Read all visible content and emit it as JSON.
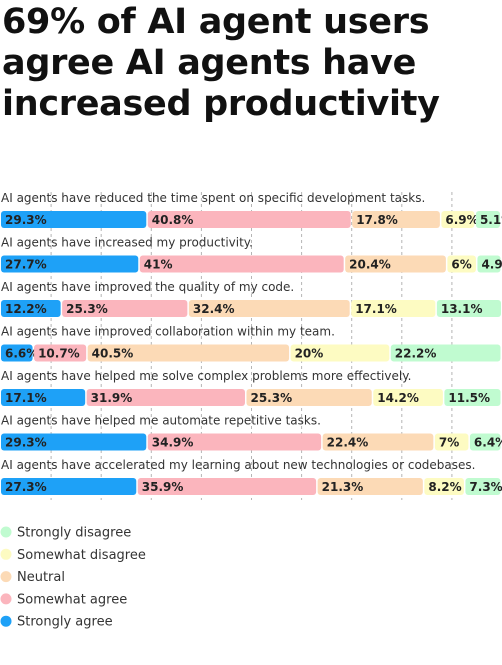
{
  "title": "69% of AI agent users agree AI agents have increased productivity",
  "chart_data": {
    "type": "bar",
    "stacked": true,
    "orientation": "horizontal",
    "categories": [
      "AI agents have reduced the time spent on specific development tasks.",
      "AI agents have increased my productivity.",
      "AI agents have improved the quality of my code.",
      "AI agents have improved collaboration within my team.",
      "AI agents have helped me solve complex problems more effectively.",
      "AI agents have helped me automate repetitive tasks.",
      "AI agents have accelerated my learning about new technologies or codebases."
    ],
    "series": [
      {
        "name": "Strongly agree",
        "color": "#1ea1f7",
        "values": [
          29.3,
          27.7,
          12.2,
          6.6,
          17.1,
          29.3,
          27.3
        ]
      },
      {
        "name": "Somewhat agree",
        "color": "#fbb5bd",
        "values": [
          40.8,
          41,
          25.3,
          10.7,
          31.9,
          34.9,
          35.9
        ]
      },
      {
        "name": "Neutral",
        "color": "#fcdab6",
        "values": [
          17.8,
          20.4,
          32.4,
          40.5,
          25.3,
          22.4,
          21.3
        ]
      },
      {
        "name": "Somewhat disagree",
        "color": "#fdfbc2",
        "values": [
          6.9,
          6,
          17.1,
          20,
          14.2,
          7,
          8.2
        ]
      },
      {
        "name": "Strongly disagree",
        "color": "#c0fbd0",
        "values": [
          5.1,
          4.9,
          13.1,
          22.2,
          11.5,
          6.4,
          7.3
        ]
      }
    ],
    "legend_order": [
      "Strongly disagree",
      "Somewhat disagree",
      "Neutral",
      "Somewhat agree",
      "Strongly agree"
    ],
    "value_suffix": "%",
    "xlim": [
      0,
      100
    ],
    "grid": true,
    "legend_position": "bottom-left"
  }
}
